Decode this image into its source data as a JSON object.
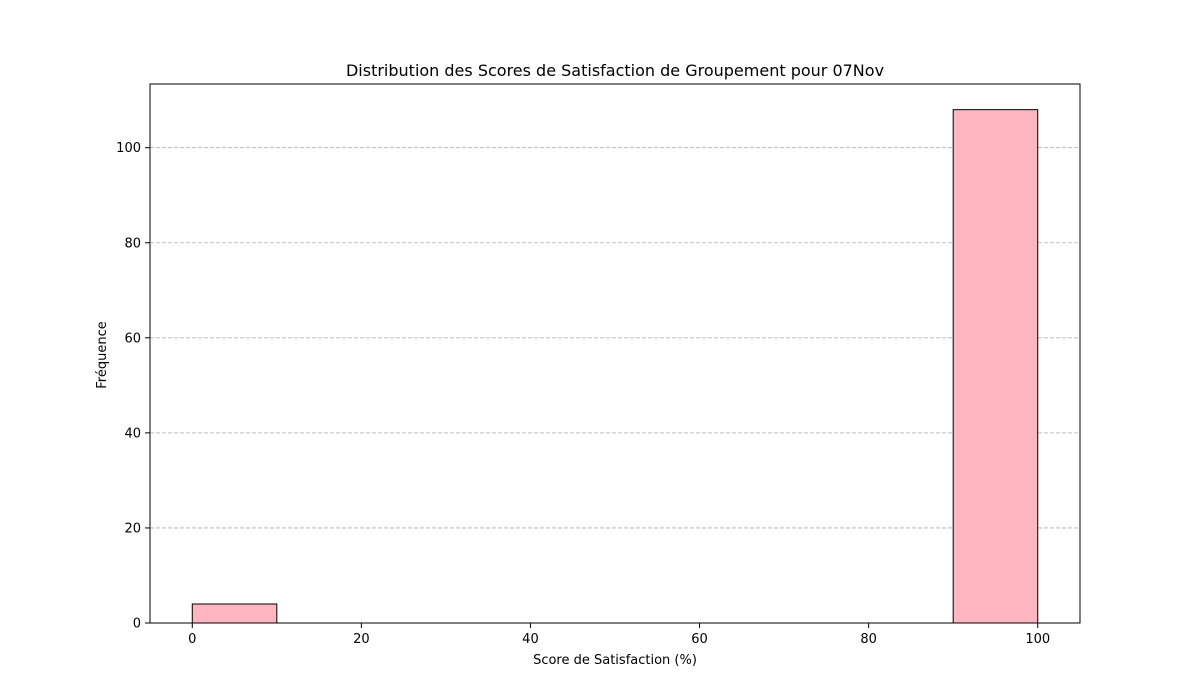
{
  "chart_data": {
    "type": "bar",
    "title": "Distribution des Scores de Satisfaction de Groupement pour 07Nov",
    "xlabel": "Score de Satisfaction (%)",
    "ylabel": "Fréquence",
    "xlim": [
      -5,
      105
    ],
    "ylim": [
      0,
      113.4
    ],
    "xticks": [
      0,
      20,
      40,
      60,
      80,
      100
    ],
    "yticks": [
      0,
      20,
      40,
      60,
      80,
      100
    ],
    "bin_edges": [
      0,
      10,
      20,
      30,
      40,
      50,
      60,
      70,
      80,
      90,
      100
    ],
    "values": [
      4,
      0,
      0,
      0,
      0,
      0,
      0,
      0,
      0,
      108
    ],
    "bar_color": "#ffb6c1",
    "edge_color": "#000000",
    "grid": "y",
    "legend": "none"
  }
}
